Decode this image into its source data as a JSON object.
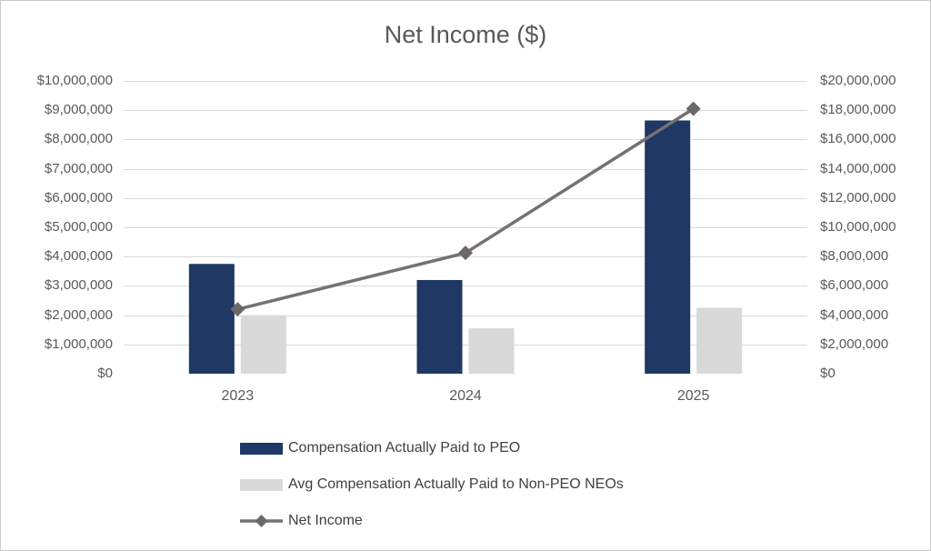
{
  "chart_data": {
    "type": "bar+line",
    "title": "Net Income ($)",
    "categories": [
      "2023",
      "2024",
      "2025"
    ],
    "series": [
      {
        "name": "Compensation Actually Paid to PEO",
        "type": "bar",
        "axis": "left",
        "color": "#1F3864",
        "values": [
          3750000,
          3200000,
          8650000
        ]
      },
      {
        "name": "Avg Compensation Actually Paid to Non-PEO NEOs",
        "type": "bar",
        "axis": "left",
        "color": "#D9D9D9",
        "values": [
          2000000,
          1550000,
          2250000
        ]
      },
      {
        "name": "Net Income",
        "type": "line",
        "axis": "right",
        "color": "#767171",
        "marker": "diamond",
        "marker_color": "#6C6868",
        "values": [
          4400000,
          8250000,
          18100000
        ]
      }
    ],
    "left_axis": {
      "min": 0,
      "max": 10000000,
      "step": 1000000,
      "tick_labels": [
        "$10,000,000",
        "$9,000,000",
        "$8,000,000",
        "$7,000,000",
        "$6,000,000",
        "$5,000,000",
        "$4,000,000",
        "$3,000,000",
        "$2,000,000",
        "$1,000,000",
        "$0"
      ]
    },
    "right_axis": {
      "min": 0,
      "max": 20000000,
      "step": 2000000,
      "tick_labels": [
        "$20,000,000",
        "$18,000,000",
        "$16,000,000",
        "$14,000,000",
        "$12,000,000",
        "$10,000,000",
        "$8,000,000",
        "$6,000,000",
        "$4,000,000",
        "$2,000,000",
        "$0"
      ]
    },
    "grid": true,
    "legend_position": "bottom-left",
    "text_color": "#595959",
    "gridline_color": "#D9D9D9",
    "axis_line_color": "#BFBFBF"
  }
}
